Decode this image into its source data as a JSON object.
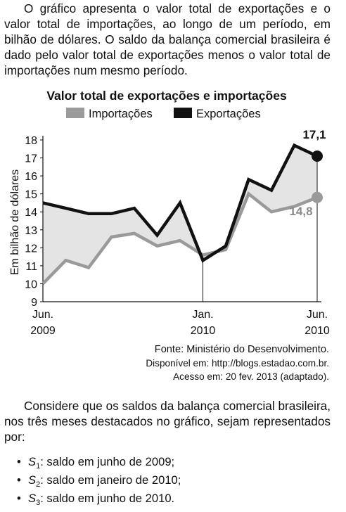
{
  "intro": "O gráfico apresenta o valor total de exportações e o valor total de importações, ao longo de um período, em bilhão de dólares. O saldo da balança comercial brasileira é dado pelo valor total de exportações menos o valor total de importações num mesmo período.",
  "chart_data": {
    "type": "line",
    "title": "Valor total de exportações e importações",
    "ylabel": "Em bilhão de dólares",
    "ylim": [
      9,
      18
    ],
    "yticks": [
      9,
      10,
      11,
      12,
      13,
      14,
      15,
      16,
      17,
      18
    ],
    "grid": false,
    "legend_position": "top",
    "x": [
      0,
      1,
      2,
      3,
      4,
      5,
      6,
      7,
      8,
      9,
      10,
      11,
      12
    ],
    "xtick_labels": [
      {
        "at": 0,
        "line1": "Jun.",
        "line2": "2009"
      },
      {
        "at": 7,
        "line1": "Jan.",
        "line2": "2010"
      },
      {
        "at": 12,
        "line1": "Jun.",
        "line2": "2010"
      }
    ],
    "series": [
      {
        "name": "Importações",
        "color": "#9a9a9a",
        "values": [
          10.0,
          11.3,
          10.9,
          12.6,
          12.8,
          12.1,
          12.4,
          11.6,
          11.9,
          15.0,
          14.0,
          14.3,
          14.8
        ]
      },
      {
        "name": "Exportações",
        "color": "#111111",
        "values": [
          14.5,
          14.2,
          13.9,
          13.9,
          14.2,
          12.7,
          14.5,
          11.3,
          12.1,
          15.8,
          15.2,
          17.7,
          17.1
        ]
      }
    ],
    "annotations": [
      {
        "text": "17,1",
        "series": "Exportações",
        "at": 12
      },
      {
        "text": "14,8",
        "series": "Importações",
        "at": 12
      }
    ],
    "fill_between_color": "#e4e4e4"
  },
  "source": {
    "line1": "Fonte: Ministério do Desenvolvimento.",
    "line2": "Disponível em: http://blogs.estadao.com.br.",
    "line3": "Acesso em: 20 fev. 2013 (adaptado)."
  },
  "outro": "Considere que os saldos da balança comercial brasileira, nos três meses destacados no gráfico, sejam representados por:",
  "bullets": [
    {
      "symbol": "S",
      "sub": "1",
      "text": ": saldo em junho de 2009;"
    },
    {
      "symbol": "S",
      "sub": "2",
      "text": ": saldo em janeiro de 2010;"
    },
    {
      "symbol": "S",
      "sub": "3",
      "text": ": saldo em junho de 2010."
    }
  ]
}
